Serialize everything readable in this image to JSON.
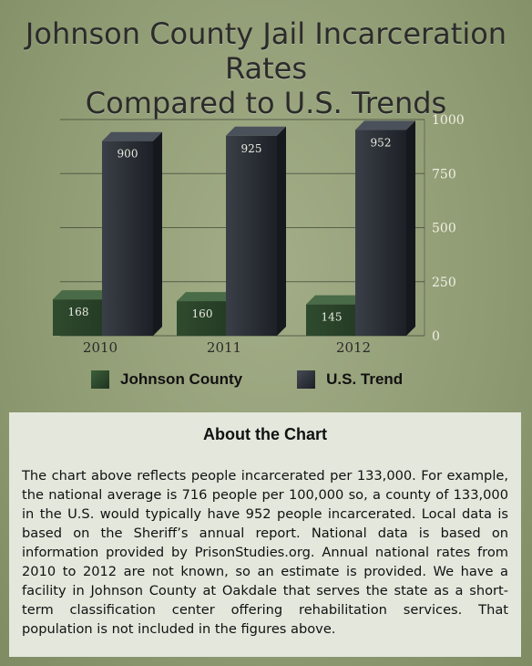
{
  "title_lines": [
    "Johnson County Jail Incarceration Rates",
    "Compared to U.S. Trends"
  ],
  "colors": {
    "background": "#8e9a72",
    "johnson_county": "#2e4a2e",
    "us_trend": "#2b2f35",
    "panel": "#e3e7dc"
  },
  "legend": {
    "johnson_label": "Johnson County",
    "us_label": "U.S. Trend"
  },
  "about": {
    "title": "About the Chart",
    "body": "The chart above reflects people incarcerated per 133,000. For example, the national average is 716 people per 100,000 so, a county of 133,000 in the U.S. would typically have 952 people incarcerated. Local data is based on the Sheriff’s annual report. National data is based on information provided by PrisonStudies.org. Annual national rates from 2010 to 2012 are not known, so an estimate is provided. We have a facility in Johnson County at Oakdale that serves the state as a short-term classification center offering rehabilitation services. That population is not included in the figures above."
  },
  "chart_data": {
    "type": "bar",
    "categories": [
      "2010",
      "2011",
      "2012"
    ],
    "series": [
      {
        "name": "Johnson County",
        "values": [
          168,
          160,
          145
        ]
      },
      {
        "name": "U.S. Trend",
        "values": [
          900,
          925,
          952
        ]
      }
    ],
    "y_ticks": [
      0,
      250,
      500,
      750,
      1000
    ],
    "y_tick_labels": [
      "0",
      "250",
      "500",
      "750",
      "1000"
    ],
    "ylim": [
      0,
      1000
    ],
    "grid": true,
    "legend_position": "bottom"
  }
}
